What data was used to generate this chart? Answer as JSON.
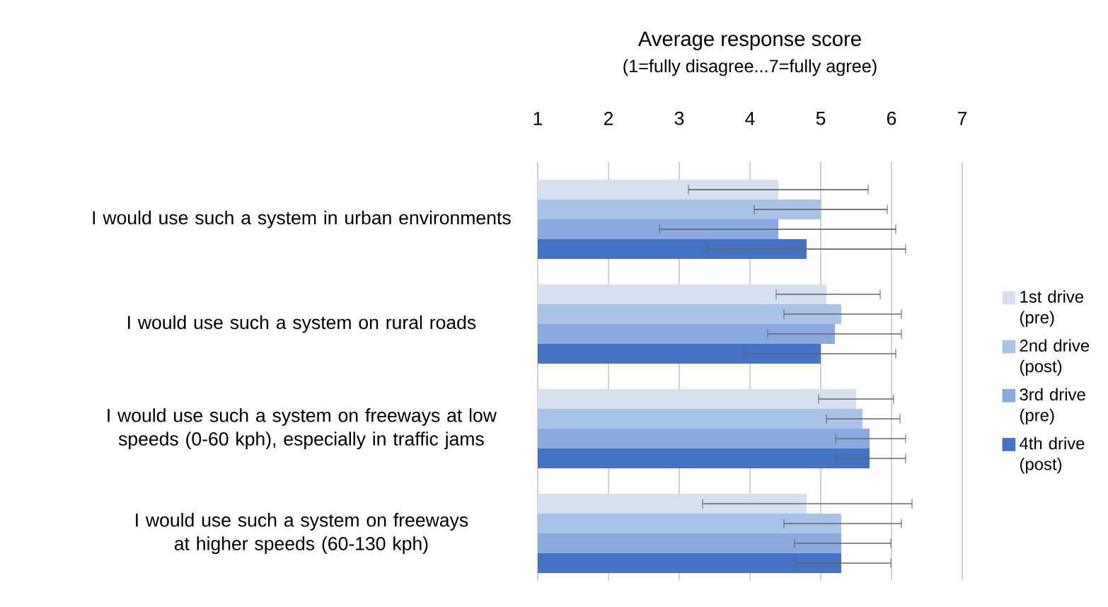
{
  "chart_data": {
    "type": "bar",
    "orientation": "horizontal",
    "title": "Average response score",
    "subtitle": "(1=fully disagree...7=fully agree)",
    "categories": [
      "I would use such a system in urban environments",
      "I would use such a system on rural roads",
      "I would use such a system on freeways at low speeds (0-60 kph), especially in traffic jams",
      "I would use such a system on freeways at higher speeds (60-130 kph)"
    ],
    "series": [
      {
        "name": "1st drive (pre)",
        "color": "#d5dff0",
        "values": [
          4.4,
          5.08,
          5.5,
          4.8
        ],
        "errors": [
          [
            3.13,
            5.67
          ],
          [
            4.37,
            5.84
          ],
          [
            4.97,
            6.03
          ],
          [
            3.33,
            6.29
          ]
        ]
      },
      {
        "name": "2nd drive (post)",
        "color": "#a9c2e8",
        "values": [
          5.0,
          5.29,
          5.59,
          5.29
        ],
        "errors": [
          [
            4.06,
            5.94
          ],
          [
            4.48,
            6.14
          ],
          [
            5.08,
            6.12
          ],
          [
            4.48,
            6.14
          ]
        ]
      },
      {
        "name": "3rd drive (pre)",
        "color": "#8aa9de",
        "values": [
          4.4,
          5.2,
          5.69,
          5.29
        ],
        "errors": [
          [
            2.72,
            6.06
          ],
          [
            4.25,
            6.14
          ],
          [
            5.21,
            6.2
          ],
          [
            4.63,
            5.99
          ]
        ]
      },
      {
        "name": "4th drive (post)",
        "color": "#4472c4",
        "values": [
          4.8,
          5.0,
          5.69,
          5.29
        ],
        "errors": [
          [
            3.4,
            6.2
          ],
          [
            3.94,
            6.06
          ],
          [
            5.21,
            6.2
          ],
          [
            4.63,
            5.99
          ]
        ]
      }
    ],
    "xlim": [
      1,
      7
    ],
    "xticks": [
      1,
      2,
      3,
      4,
      5,
      6,
      7
    ],
    "grid": "x",
    "legend": "right"
  }
}
